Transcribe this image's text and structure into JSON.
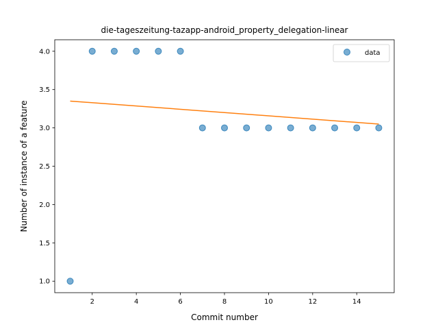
{
  "chart_data": {
    "type": "scatter",
    "title": "die-tageszeitung-tazapp-android_property_delegation-linear",
    "xlabel": "Commit number",
    "ylabel": "Number of instance of a feature",
    "xlim": [
      0.3,
      15.7
    ],
    "ylim": [
      0.85,
      4.15
    ],
    "x_ticks": [
      2,
      4,
      6,
      8,
      10,
      12,
      14
    ],
    "y_ticks": [
      1.0,
      1.5,
      2.0,
      2.5,
      3.0,
      3.5,
      4.0
    ],
    "x_tick_labels": [
      "2",
      "4",
      "6",
      "8",
      "10",
      "12",
      "14"
    ],
    "y_tick_labels": [
      "1.0",
      "1.5",
      "2.0",
      "2.5",
      "3.0",
      "3.5",
      "4.0"
    ],
    "grid": false,
    "legend": {
      "position": "top-right",
      "entries": [
        "data"
      ]
    },
    "series": [
      {
        "name": "data",
        "kind": "scatter",
        "color": "#1f77b4",
        "x": [
          1,
          2,
          3,
          4,
          5,
          6,
          7,
          8,
          9,
          10,
          11,
          12,
          13,
          14,
          15
        ],
        "y": [
          1,
          4,
          4,
          4,
          4,
          4,
          3,
          3,
          3,
          3,
          3,
          3,
          3,
          3,
          3
        ]
      },
      {
        "kind": "line",
        "color": "#ff7f0e",
        "x": [
          1,
          15
        ],
        "y": [
          3.35,
          3.05
        ]
      }
    ]
  }
}
